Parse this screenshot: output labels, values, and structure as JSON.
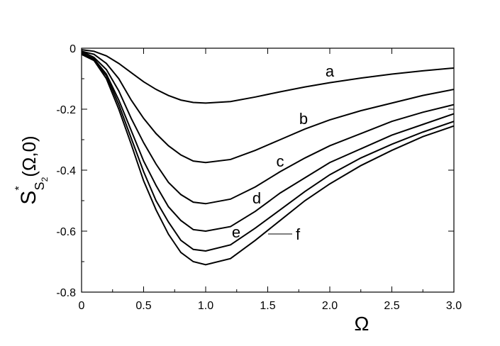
{
  "chart_data": {
    "type": "line",
    "x_label": "Ω",
    "y_label": {
      "main": "S",
      "sup": "*",
      "sub": "S",
      "subsub": "2",
      "arg": "(Ω,0)"
    },
    "x": [
      0,
      0.1,
      0.2,
      0.3,
      0.4,
      0.5,
      0.6,
      0.7,
      0.8,
      0.9,
      1.0,
      1.2,
      1.4,
      1.6,
      1.8,
      2.0,
      2.25,
      2.5,
      2.75,
      3.0
    ],
    "series": [
      {
        "name": "a",
        "color": "#000000",
        "values": [
          -0.005,
          -0.01,
          -0.025,
          -0.05,
          -0.08,
          -0.11,
          -0.135,
          -0.155,
          -0.17,
          -0.178,
          -0.18,
          -0.175,
          -0.16,
          -0.143,
          -0.127,
          -0.113,
          -0.098,
          -0.085,
          -0.074,
          -0.065
        ]
      },
      {
        "name": "b",
        "color": "#000000",
        "values": [
          -0.01,
          -0.02,
          -0.05,
          -0.1,
          -0.17,
          -0.23,
          -0.28,
          -0.32,
          -0.35,
          -0.37,
          -0.375,
          -0.365,
          -0.335,
          -0.3,
          -0.265,
          -0.235,
          -0.205,
          -0.18,
          -0.155,
          -0.135
        ]
      },
      {
        "name": "c",
        "color": "#000000",
        "values": [
          -0.01,
          -0.03,
          -0.07,
          -0.14,
          -0.23,
          -0.31,
          -0.38,
          -0.44,
          -0.48,
          -0.505,
          -0.51,
          -0.495,
          -0.455,
          -0.405,
          -0.36,
          -0.32,
          -0.28,
          -0.24,
          -0.21,
          -0.185
        ]
      },
      {
        "name": "d",
        "color": "#000000",
        "values": [
          -0.015,
          -0.035,
          -0.085,
          -0.17,
          -0.27,
          -0.37,
          -0.45,
          -0.52,
          -0.565,
          -0.595,
          -0.6,
          -0.585,
          -0.535,
          -0.475,
          -0.425,
          -0.375,
          -0.33,
          -0.285,
          -0.25,
          -0.215
        ]
      },
      {
        "name": "e",
        "color": "#000000",
        "values": [
          -0.02,
          -0.04,
          -0.09,
          -0.185,
          -0.295,
          -0.405,
          -0.5,
          -0.57,
          -0.63,
          -0.66,
          -0.665,
          -0.645,
          -0.59,
          -0.53,
          -0.47,
          -0.415,
          -0.36,
          -0.315,
          -0.275,
          -0.24
        ]
      },
      {
        "name": "f",
        "color": "#000000",
        "values": [
          -0.02,
          -0.04,
          -0.1,
          -0.2,
          -0.315,
          -0.435,
          -0.53,
          -0.61,
          -0.67,
          -0.7,
          -0.71,
          -0.69,
          -0.63,
          -0.565,
          -0.5,
          -0.445,
          -0.385,
          -0.335,
          -0.29,
          -0.255
        ]
      }
    ],
    "xlim": [
      0,
      3.0
    ],
    "ylim": [
      -0.8,
      0
    ],
    "xticks": [
      0,
      0.5,
      {
        "value": 1,
        "label": "1.0"
      },
      1.5,
      {
        "value": 2,
        "label": "2.0"
      },
      2.5,
      {
        "value": 3,
        "label": "3.0"
      }
    ],
    "yticks": [
      0,
      -0.2,
      -0.4,
      -0.6,
      -0.8
    ],
    "x_minor_ticks": [
      0.25,
      0.75,
      1.25,
      1.75,
      2.25,
      2.75
    ],
    "y_minor_ticks": [
      -0.1,
      -0.3,
      -0.5,
      -0.7
    ],
    "grid": false
  }
}
